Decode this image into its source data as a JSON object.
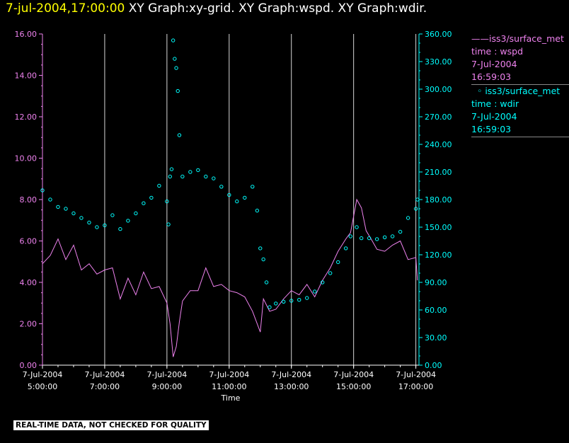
{
  "header": {
    "timestamp": "7-jul-2004,17:00:00",
    "graphs": "XY Graph:xy-grid.  XY Graph:wspd.  XY Graph:wdir."
  },
  "legend": {
    "series": [
      {
        "marker": "——",
        "source": "iss3/surface_met",
        "var": "time : wspd",
        "date": "7-Jul-2004",
        "time": "16:59:03",
        "color": "#ee82ee"
      },
      {
        "marker": "◦",
        "source": "iss3/surface_met",
        "var": "time : wdir",
        "date": "7-Jul-2004",
        "time": "16:59:03",
        "color": "#00ffff"
      }
    ]
  },
  "disclaimer": "REAL-TIME DATA, NOT CHECKED FOR QUALITY",
  "chart_data": {
    "type": "line",
    "xlabel": "Time",
    "x_range_hours": [
      5,
      17.1
    ],
    "x_ticks": [
      {
        "hour": 5,
        "date": "7-Jul-2004",
        "time": "5:00:00"
      },
      {
        "hour": 7,
        "date": "7-Jul-2004",
        "time": "7:00:00"
      },
      {
        "hour": 9,
        "date": "7-Jul-2004",
        "time": "9:00:00"
      },
      {
        "hour": 11,
        "date": "7-Jul-2004",
        "time": "11:00:00"
      },
      {
        "hour": 13,
        "date": "7-Jul-2004",
        "time": "13:00:00"
      },
      {
        "hour": 15,
        "date": "7-Jul-2004",
        "time": "15:00:00"
      },
      {
        "hour": 17,
        "date": "7-Jul-2004",
        "time": "17:00:00"
      }
    ],
    "vertical_grid_hours": [
      7,
      9,
      11,
      13,
      15,
      17
    ],
    "left_axis": {
      "min": 0,
      "max": 16,
      "ticks": [
        "0.00",
        "2.00",
        "4.00",
        "6.00",
        "8.00",
        "10.00",
        "12.00",
        "14.00",
        "16.00"
      ],
      "color": "#ee82ee"
    },
    "right_axis": {
      "min": 0,
      "max": 360,
      "ticks": [
        "0.00",
        "30.00",
        "60.00",
        "90.00",
        "120.00",
        "150.00",
        "180.00",
        "210.00",
        "240.00",
        "270.00",
        "300.00",
        "330.00",
        "360.00"
      ],
      "color": "#00ffff"
    },
    "series": [
      {
        "name": "wspd",
        "style": "line",
        "axis": "left",
        "color": "#ee82ee",
        "x": [
          5.0,
          5.25,
          5.5,
          5.75,
          6.0,
          6.25,
          6.5,
          6.75,
          7.0,
          7.25,
          7.5,
          7.75,
          8.0,
          8.25,
          8.5,
          8.75,
          9.0,
          9.1,
          9.2,
          9.3,
          9.4,
          9.5,
          9.75,
          10.0,
          10.25,
          10.5,
          10.75,
          11.0,
          11.25,
          11.5,
          11.75,
          12.0,
          12.1,
          12.3,
          12.5,
          12.75,
          13.0,
          13.25,
          13.5,
          13.75,
          14.0,
          14.25,
          14.5,
          14.75,
          14.9,
          15.1,
          15.25,
          15.4,
          15.6,
          15.75,
          16.0,
          16.25,
          16.5,
          16.75,
          17.0,
          17.05
        ],
        "y": [
          4.9,
          5.3,
          6.1,
          5.1,
          5.8,
          4.6,
          4.9,
          4.4,
          4.6,
          4.7,
          3.2,
          4.2,
          3.4,
          4.5,
          3.7,
          3.8,
          3.0,
          2.0,
          0.4,
          0.9,
          2.1,
          3.1,
          3.6,
          3.6,
          4.7,
          3.8,
          3.9,
          3.6,
          3.5,
          3.3,
          2.6,
          1.6,
          3.2,
          2.6,
          2.7,
          3.2,
          3.6,
          3.4,
          3.9,
          3.3,
          4.1,
          4.7,
          5.5,
          6.1,
          6.4,
          8.0,
          7.6,
          6.5,
          6.0,
          5.6,
          5.5,
          5.8,
          6.0,
          5.1,
          5.2,
          4.1
        ]
      },
      {
        "name": "wdir",
        "style": "points",
        "axis": "right",
        "color": "#00ffff",
        "x": [
          5.0,
          5.25,
          5.5,
          5.75,
          6.0,
          6.25,
          6.5,
          6.75,
          7.0,
          7.25,
          7.5,
          7.75,
          8.0,
          8.25,
          8.5,
          8.75,
          9.0,
          9.05,
          9.1,
          9.15,
          9.2,
          9.25,
          9.3,
          9.35,
          9.4,
          9.5,
          9.75,
          10.0,
          10.25,
          10.5,
          10.75,
          11.0,
          11.25,
          11.5,
          11.75,
          11.9,
          12.0,
          12.1,
          12.2,
          12.3,
          12.5,
          12.75,
          13.0,
          13.25,
          13.5,
          13.75,
          14.0,
          14.25,
          14.5,
          14.75,
          14.9,
          15.1,
          15.25,
          15.5,
          15.75,
          16.0,
          16.25,
          16.5,
          16.75,
          17.0,
          17.05
        ],
        "y": [
          190,
          180,
          172,
          170,
          165,
          160,
          155,
          150,
          152,
          163,
          148,
          157,
          165,
          176,
          182,
          195,
          178,
          153,
          205,
          213,
          353,
          333,
          323,
          298,
          250,
          205,
          210,
          212,
          205,
          203,
          194,
          185,
          178,
          182,
          194,
          168,
          127,
          115,
          90,
          63,
          67,
          69,
          70,
          71,
          73,
          80,
          90,
          100,
          112,
          127,
          140,
          150,
          138,
          138,
          137,
          139,
          140,
          145,
          160,
          170,
          180
        ]
      }
    ]
  }
}
